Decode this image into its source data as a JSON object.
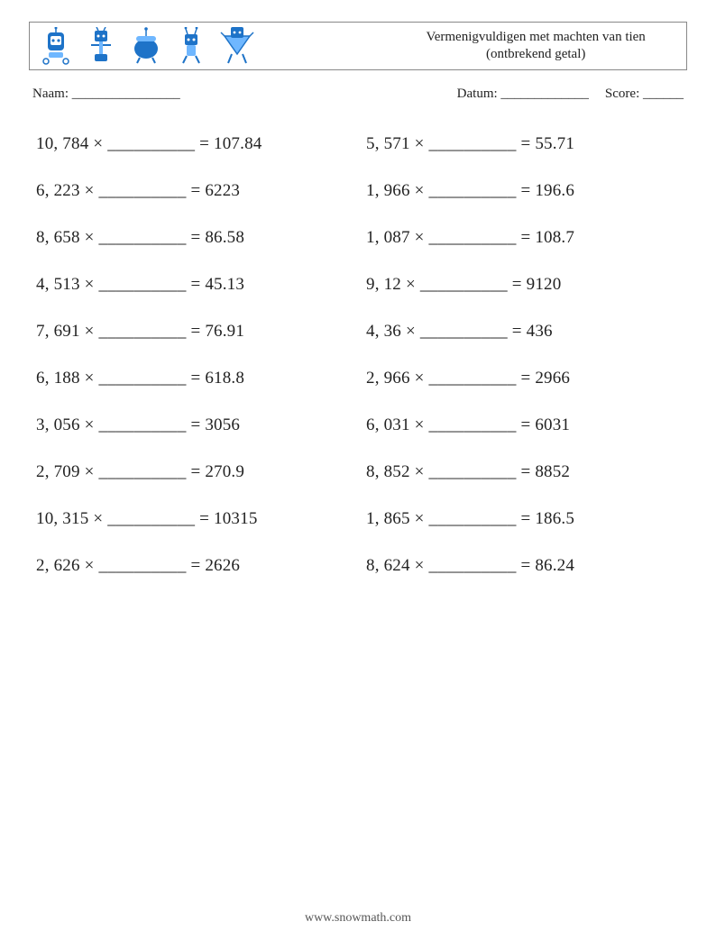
{
  "header": {
    "title_line1": "Vermenigvuldigen met machten van tien",
    "title_line2": "(ontbrekend getal)",
    "icon_color": "#1e73c8",
    "icon_accent": "#6fb7ff"
  },
  "info": {
    "name_label": "Naam: ________________",
    "date_label": "Datum: _____________",
    "score_label": "Score: ______"
  },
  "styling": {
    "blank": "__________",
    "times": "×",
    "equals": "=",
    "problem_fontsize": 19,
    "row_gap": 30,
    "text_color": "#222222",
    "background": "#ffffff"
  },
  "problems": {
    "left": [
      {
        "a": "10, 784",
        "b": "107.84"
      },
      {
        "a": "6, 223",
        "b": "6223"
      },
      {
        "a": "8, 658",
        "b": "86.58"
      },
      {
        "a": "4, 513",
        "b": "45.13"
      },
      {
        "a": "7, 691",
        "b": "76.91"
      },
      {
        "a": "6, 188",
        "b": "618.8"
      },
      {
        "a": "3, 056",
        "b": "3056"
      },
      {
        "a": "2, 709",
        "b": "270.9"
      },
      {
        "a": "10, 315",
        "b": "10315"
      },
      {
        "a": "2, 626",
        "b": "2626"
      }
    ],
    "right": [
      {
        "a": "5, 571",
        "b": "55.71"
      },
      {
        "a": "1, 966",
        "b": "196.6"
      },
      {
        "a": "1, 087",
        "b": "108.7"
      },
      {
        "a": "9, 12",
        "b": "9120"
      },
      {
        "a": "4, 36",
        "b": "436"
      },
      {
        "a": "2, 966",
        "b": "2966"
      },
      {
        "a": "6, 031",
        "b": "6031"
      },
      {
        "a": "8, 852",
        "b": "8852"
      },
      {
        "a": "1, 865",
        "b": "186.5"
      },
      {
        "a": "8, 624",
        "b": "86.24"
      }
    ]
  },
  "footer": {
    "text": "www.snowmath.com"
  }
}
